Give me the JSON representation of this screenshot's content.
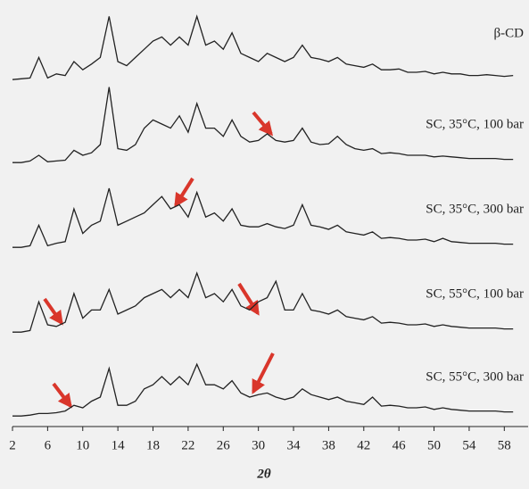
{
  "chart_data": [
    {
      "type": "line",
      "name": "β-CD",
      "color": "#222222",
      "xlim": [
        2,
        60
      ],
      "ylim": [
        0,
        100
      ],
      "x": [
        2,
        3,
        4,
        5,
        6,
        7,
        8,
        9,
        10,
        11,
        12,
        13,
        14,
        15,
        16,
        17,
        18,
        19,
        20,
        21,
        22,
        23,
        24,
        25,
        26,
        27,
        28,
        29,
        30,
        31,
        32,
        33,
        34,
        35,
        36,
        37,
        38,
        39,
        40,
        41,
        42,
        43,
        44,
        45,
        46,
        47,
        48,
        49,
        50,
        51,
        52,
        53,
        54,
        55,
        56,
        57,
        58,
        59
      ],
      "values": [
        3,
        4,
        5,
        30,
        5,
        10,
        8,
        25,
        15,
        22,
        30,
        80,
        25,
        20,
        30,
        40,
        50,
        55,
        45,
        55,
        45,
        80,
        45,
        50,
        40,
        60,
        35,
        30,
        25,
        35,
        30,
        25,
        30,
        45,
        30,
        28,
        25,
        30,
        22,
        20,
        18,
        22,
        15,
        15,
        16,
        12,
        12,
        13,
        10,
        12,
        10,
        10,
        8,
        8,
        9,
        8,
        7,
        8
      ]
    },
    {
      "type": "line",
      "name": "SC, 35°C, 100 bar",
      "color": "#222222",
      "xlim": [
        2,
        60
      ],
      "ylim": [
        0,
        100
      ],
      "x": [
        2,
        3,
        4,
        5,
        6,
        7,
        8,
        9,
        10,
        11,
        12,
        13,
        14,
        15,
        16,
        17,
        18,
        19,
        20,
        21,
        22,
        23,
        24,
        25,
        26,
        27,
        28,
        29,
        30,
        31,
        32,
        33,
        34,
        35,
        36,
        37,
        38,
        39,
        40,
        41,
        42,
        43,
        44,
        45,
        46,
        47,
        48,
        49,
        50,
        51,
        52,
        53,
        54,
        55,
        56,
        57,
        58,
        59
      ],
      "values": [
        3,
        3,
        5,
        12,
        4,
        5,
        6,
        18,
        12,
        15,
        25,
        95,
        20,
        18,
        25,
        45,
        55,
        50,
        45,
        60,
        40,
        75,
        45,
        45,
        35,
        55,
        35,
        28,
        30,
        38,
        30,
        28,
        30,
        45,
        28,
        25,
        26,
        35,
        25,
        20,
        18,
        20,
        14,
        15,
        14,
        12,
        12,
        12,
        10,
        11,
        10,
        9,
        8,
        8,
        8,
        8,
        7,
        7
      ]
    },
    {
      "type": "line",
      "name": "SC, 35°C, 300 bar",
      "color": "#222222",
      "xlim": [
        2,
        60
      ],
      "ylim": [
        0,
        100
      ],
      "x": [
        2,
        3,
        4,
        5,
        6,
        7,
        8,
        9,
        10,
        11,
        12,
        13,
        14,
        15,
        16,
        17,
        18,
        19,
        20,
        21,
        22,
        23,
        24,
        25,
        26,
        27,
        28,
        29,
        30,
        31,
        32,
        33,
        34,
        35,
        36,
        37,
        38,
        39,
        40,
        41,
        42,
        43,
        44,
        45,
        46,
        47,
        48,
        49,
        50,
        51,
        52,
        53,
        54,
        55,
        56,
        57,
        58,
        59
      ],
      "values": [
        3,
        3,
        5,
        30,
        5,
        8,
        10,
        50,
        20,
        30,
        35,
        75,
        30,
        35,
        40,
        45,
        55,
        65,
        50,
        55,
        40,
        70,
        40,
        45,
        35,
        50,
        30,
        28,
        28,
        32,
        28,
        26,
        30,
        55,
        30,
        28,
        25,
        30,
        22,
        20,
        18,
        22,
        14,
        15,
        14,
        12,
        12,
        13,
        10,
        14,
        10,
        9,
        8,
        8,
        8,
        8,
        7,
        7
      ]
    },
    {
      "type": "line",
      "name": "SC, 55°C, 100 bar",
      "color": "#222222",
      "xlim": [
        2,
        60
      ],
      "ylim": [
        0,
        100
      ],
      "x": [
        2,
        3,
        4,
        5,
        6,
        7,
        8,
        9,
        10,
        11,
        12,
        13,
        14,
        15,
        16,
        17,
        18,
        19,
        20,
        21,
        22,
        23,
        24,
        25,
        26,
        27,
        28,
        29,
        30,
        31,
        32,
        33,
        34,
        35,
        36,
        37,
        38,
        39,
        40,
        41,
        42,
        43,
        44,
        45,
        46,
        47,
        48,
        49,
        50,
        51,
        52,
        53,
        54,
        55,
        56,
        57,
        58,
        59
      ],
      "values": [
        3,
        3,
        5,
        40,
        12,
        10,
        15,
        50,
        20,
        30,
        30,
        55,
        25,
        30,
        35,
        45,
        50,
        55,
        45,
        55,
        45,
        75,
        45,
        50,
        40,
        55,
        35,
        30,
        40,
        45,
        65,
        30,
        30,
        50,
        30,
        28,
        25,
        30,
        22,
        20,
        18,
        22,
        14,
        15,
        14,
        12,
        12,
        13,
        10,
        12,
        10,
        9,
        8,
        8,
        8,
        8,
        7,
        7
      ]
    },
    {
      "type": "line",
      "name": "SC, 55°C, 300 bar",
      "color": "#222222",
      "xlim": [
        2,
        60
      ],
      "ylim": [
        0,
        100
      ],
      "x": [
        2,
        3,
        4,
        5,
        6,
        7,
        8,
        9,
        10,
        11,
        12,
        13,
        14,
        15,
        16,
        17,
        18,
        19,
        20,
        21,
        22,
        23,
        24,
        25,
        26,
        27,
        28,
        29,
        30,
        31,
        32,
        33,
        34,
        35,
        36,
        37,
        38,
        39,
        40,
        41,
        42,
        43,
        44,
        45,
        46,
        47,
        48,
        49,
        50,
        51,
        52,
        53,
        54,
        55,
        56,
        57,
        58,
        59
      ],
      "values": [
        2,
        2,
        3,
        5,
        5,
        6,
        8,
        15,
        12,
        20,
        25,
        60,
        15,
        15,
        20,
        35,
        40,
        50,
        40,
        50,
        40,
        65,
        40,
        40,
        35,
        45,
        30,
        25,
        28,
        30,
        25,
        22,
        25,
        35,
        28,
        25,
        22,
        25,
        20,
        18,
        16,
        25,
        14,
        15,
        14,
        12,
        12,
        13,
        10,
        12,
        10,
        9,
        8,
        8,
        8,
        8,
        7,
        7
      ],
      "xticks": [
        2,
        6,
        10,
        14,
        18,
        22,
        26,
        30,
        34,
        38,
        42,
        46,
        50,
        54,
        58
      ],
      "xlabel": "2θ"
    }
  ]
}
